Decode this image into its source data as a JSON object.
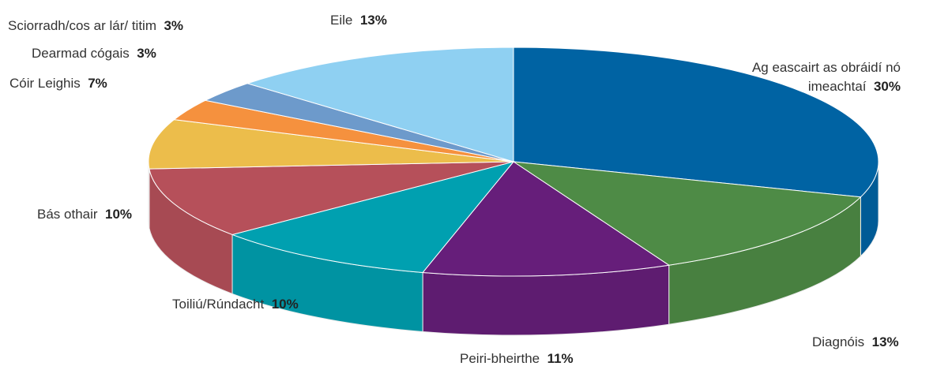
{
  "chart_data": {
    "type": "pie",
    "categories": [
      "Ag eascairt as obráidí nó imeachtaí",
      "Diagnóis",
      "Peiri-bheirthe",
      "Toiliú/Rúndacht",
      "Bás othair",
      "Cóir Leighis",
      "Dearmad cógais",
      "Sciorradh/cos ar lár/ titim",
      "Eile"
    ],
    "values": [
      30,
      13,
      11,
      10,
      10,
      7,
      3,
      3,
      13
    ],
    "value_labels": [
      "30%",
      "13%",
      "11%",
      "10%",
      "10%",
      "7%",
      "3%",
      "3%",
      "13%"
    ],
    "colors": [
      "#0063a3",
      "#4e8b46",
      "#661e7a",
      "#00a0b0",
      "#b6505a",
      "#ecbd4b",
      "#f5913e",
      "#6d9acb",
      "#8fd0f2"
    ]
  }
}
